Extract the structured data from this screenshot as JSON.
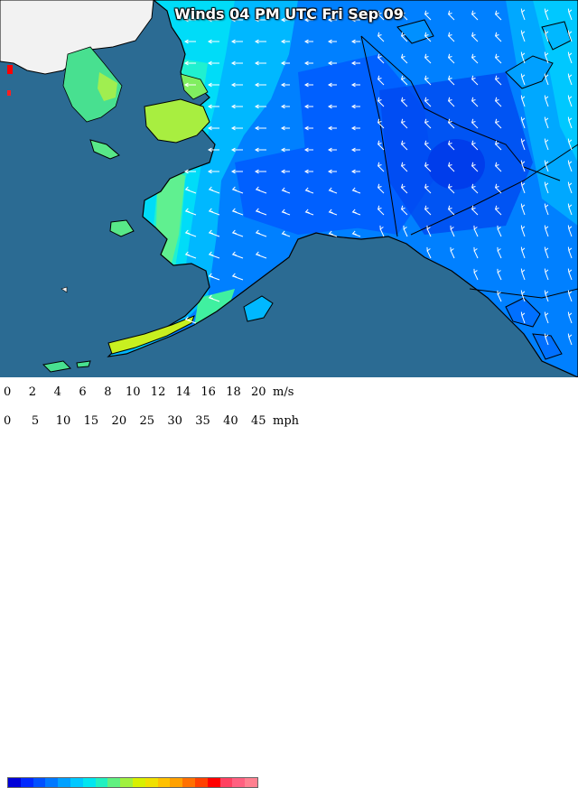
{
  "title": "Winds 04 PM UTC Fri Sep 09",
  "map": {
    "ocean_color": "#2b6b93",
    "land_color": "#f2f2f2",
    "coast_color": "#000000",
    "arrow_color": "#ffffff"
  },
  "legend": {
    "ms_unit": "m/s",
    "mph_unit": "mph",
    "ms_ticks": [
      "0",
      "2",
      "4",
      "6",
      "8",
      "10",
      "12",
      "14",
      "16",
      "18",
      "20"
    ],
    "mph_ticks": [
      "0",
      "5",
      "10",
      "15",
      "20",
      "25",
      "30",
      "35",
      "40",
      "45"
    ],
    "colors": [
      "#0000d8",
      "#0028ff",
      "#0050ff",
      "#0078ff",
      "#00a0ff",
      "#00c8ff",
      "#00e6f0",
      "#20f0c0",
      "#60f080",
      "#a0f040",
      "#d8f000",
      "#f0e000",
      "#ffc000",
      "#ffa000",
      "#ff7000",
      "#ff4000",
      "#ff0000",
      "#ff4060",
      "#ff6080",
      "#ff8090"
    ]
  }
}
